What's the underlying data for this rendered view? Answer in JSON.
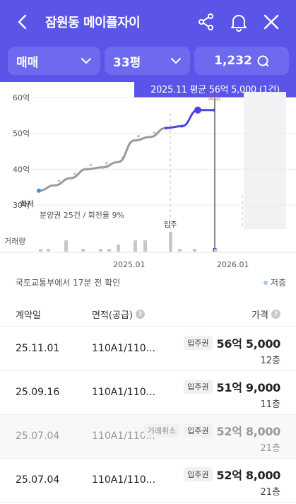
{
  "header": {
    "title": "잠원동 메이플자이",
    "back_icon": "chevron-left-icon",
    "share_icon": "share-icon",
    "bell_icon": "bell-icon",
    "close_icon": "close-icon"
  },
  "filters": {
    "trade_type": "매매",
    "size": "33평",
    "count": "1,232"
  },
  "tooltip": "2025.11 평균 56억 5,000 (1건)",
  "chart": {
    "y_ticks": [
      "60억",
      "50억",
      "40억",
      "30억"
    ],
    "x_ticks": [
      "2025.01",
      "2026.01"
    ],
    "min_label": "최저",
    "max_label": "최고",
    "presale_note": "분양권 25건 / 회전율 9%",
    "move_in_label": "입주",
    "volume_label": "거래량",
    "colors": {
      "line": "#4a44e0",
      "trend": "#999999",
      "point": "#a6a6a6"
    }
  },
  "chart_data": {
    "type": "line",
    "ylabel": "",
    "ylim": [
      30,
      60
    ],
    "y_unit": "억",
    "x": [
      "2024.03",
      "2024.05",
      "2024.07",
      "2024.09",
      "2024.11",
      "2025.01",
      "2025.03",
      "2025.05",
      "2025.07",
      "2025.09",
      "2025.11",
      "2025.12"
    ],
    "series": [
      {
        "values": [
          34,
          35.5,
          37.5,
          40,
          40.5,
          42,
          48,
          49,
          51.5,
          52,
          56.5,
          56.5
        ]
      }
    ]
  },
  "update": {
    "text": "국토교통부에서 17분 전 확인",
    "legend_floor": "저층"
  },
  "table": {
    "headers": {
      "date": "계약일",
      "area": "면적(공급)",
      "price": "가격"
    },
    "rows": [
      {
        "date": "25.11.01",
        "area": "110A1/110...",
        "badges": [
          "입주권"
        ],
        "price": "56억 5,000",
        "floor": "12층"
      },
      {
        "date": "25.09.16",
        "area": "110A1/110...",
        "badges": [
          "입주권"
        ],
        "price": "51억 9,000",
        "floor": "11층"
      },
      {
        "date": "25.07.04",
        "area": "110A1/110...",
        "badges": [
          "거래취소",
          "입주권"
        ],
        "price": "52억 8,000",
        "floor": "21층"
      },
      {
        "date": "25.07.04",
        "area": "110A1/110...",
        "badges": [
          "입주권"
        ],
        "price": "52억 8,000",
        "floor": "21층"
      }
    ]
  }
}
